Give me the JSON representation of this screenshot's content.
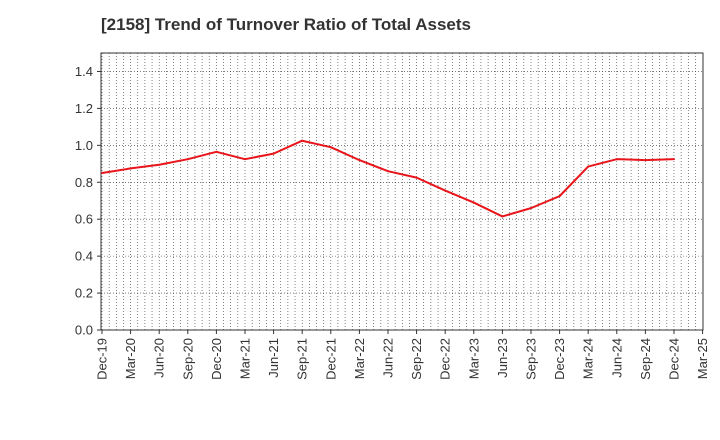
{
  "chart_data": {
    "type": "line",
    "title": "[2158]  Trend of Turnover Ratio of Total Assets",
    "xlabel": "",
    "ylabel": "",
    "ylim": [
      0,
      1.5
    ],
    "yticks": [
      "0.0",
      "0.2",
      "0.4",
      "0.6",
      "0.8",
      "1.0",
      "1.2",
      "1.4"
    ],
    "categories": [
      "Dec-19",
      "Mar-20",
      "Jun-20",
      "Sep-20",
      "Dec-20",
      "Mar-21",
      "Jun-21",
      "Sep-21",
      "Dec-21",
      "Mar-22",
      "Jun-22",
      "Sep-22",
      "Dec-22",
      "Mar-23",
      "Jun-23",
      "Sep-23",
      "Dec-23",
      "Mar-24",
      "Jun-24",
      "Sep-24",
      "Dec-24",
      "Mar-25"
    ],
    "grid": true,
    "legend": "none",
    "series": [
      {
        "color": "#e8151b",
        "values": [
          0.85,
          0.875,
          0.895,
          0.925,
          0.965,
          0.925,
          0.955,
          1.025,
          0.99,
          0.92,
          0.86,
          0.825,
          0.755,
          0.69,
          0.615,
          0.66,
          0.725,
          0.885,
          0.925,
          0.92,
          0.925,
          null
        ]
      }
    ]
  }
}
